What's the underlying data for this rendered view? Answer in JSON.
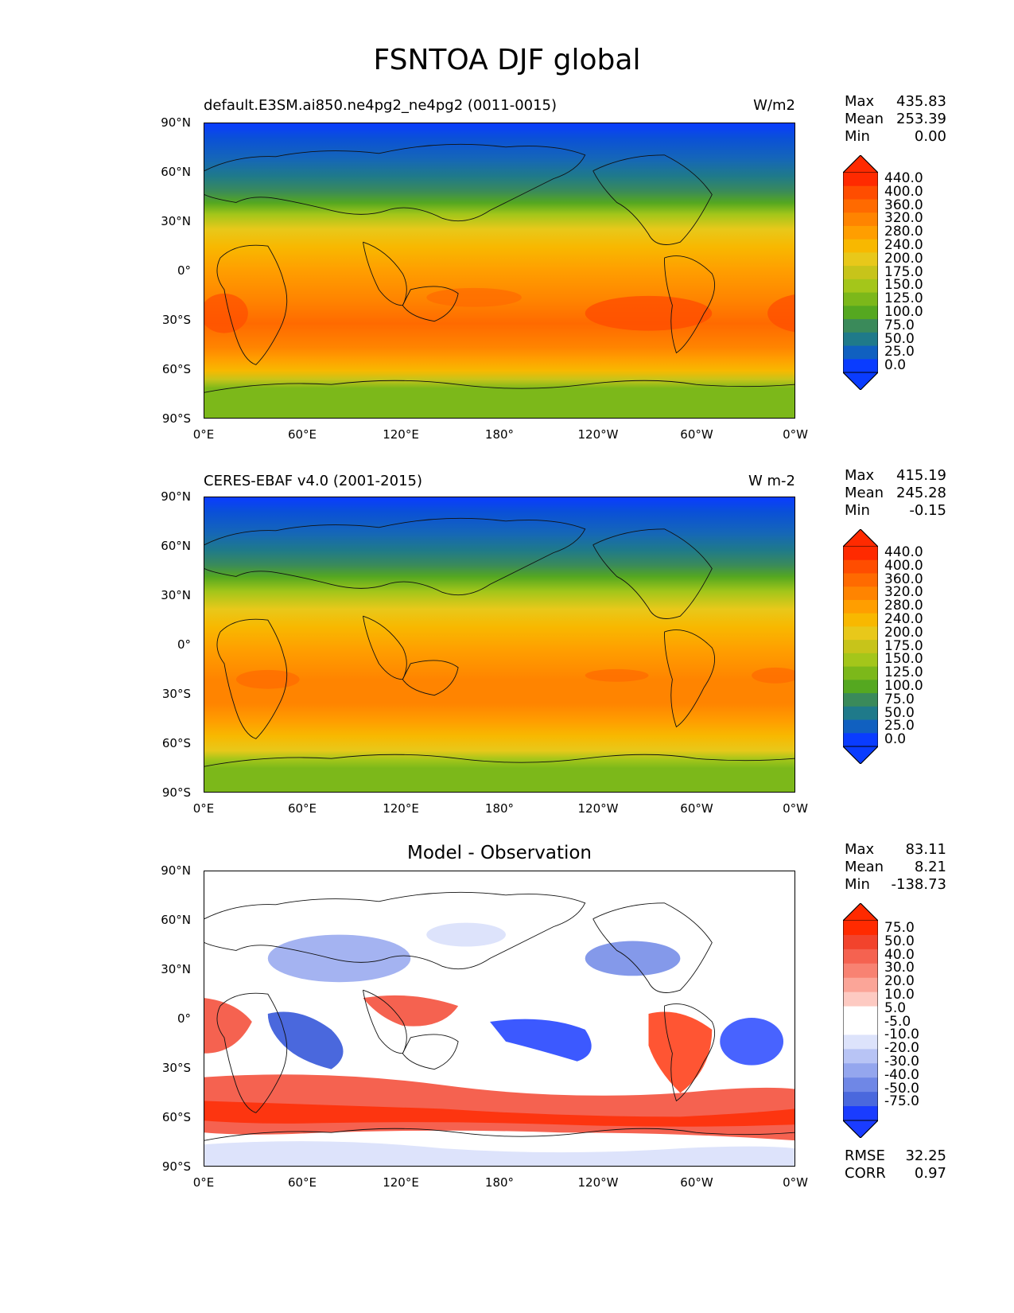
{
  "figure": {
    "title": "FSNTOA DJF global"
  },
  "axes": {
    "y_ticks": [
      "90°N",
      "60°N",
      "30°N",
      "0°",
      "30°S",
      "60°S",
      "90°S"
    ],
    "x_ticks": [
      "0°E",
      "60°E",
      "120°E",
      "180°",
      "120°W",
      "60°W",
      "0°W"
    ]
  },
  "panels": [
    {
      "title": "default.E3SM.ai850.ne4pg2_ne4pg2 (0011-0015)",
      "units": "W/m2",
      "stats": {
        "max_label": "Max",
        "max": "435.83",
        "mean_label": "Mean",
        "mean": "253.39",
        "min_label": "Min",
        "min": "0.00"
      },
      "colorbar_labels": [
        "440.0",
        "400.0",
        "360.0",
        "320.0",
        "280.0",
        "240.0",
        "200.0",
        "175.0",
        "150.0",
        "125.0",
        "100.0",
        "75.0",
        "50.0",
        "25.0",
        "0.0"
      ]
    },
    {
      "title": "CERES-EBAF v4.0 (2001-2015)",
      "units": "W m-2",
      "stats": {
        "max_label": "Max",
        "max": "415.19",
        "mean_label": "Mean",
        "mean": "245.28",
        "min_label": "Min",
        "min": "-0.15"
      },
      "colorbar_labels": [
        "440.0",
        "400.0",
        "360.0",
        "320.0",
        "280.0",
        "240.0",
        "200.0",
        "175.0",
        "150.0",
        "125.0",
        "100.0",
        "75.0",
        "50.0",
        "25.0",
        "0.0"
      ]
    },
    {
      "title": "Model - Observation",
      "units": "",
      "stats": {
        "max_label": "Max",
        "max": "83.11",
        "mean_label": "Mean",
        "mean": "8.21",
        "min_label": "Min",
        "min": "-138.73"
      },
      "colorbar_labels": [
        "75.0",
        "50.0",
        "40.0",
        "30.0",
        "20.0",
        "10.0",
        "5.0",
        "-5.0",
        "-10.0",
        "-20.0",
        "-30.0",
        "-40.0",
        "-50.0",
        "-75.0"
      ],
      "extra": {
        "rmse_label": "RMSE",
        "rmse": "32.25",
        "corr_label": "CORR",
        "corr": "0.97"
      }
    }
  ],
  "colors": {
    "abs_scale": [
      "#ff2a00",
      "#ff4d00",
      "#ff6a00",
      "#ff8400",
      "#ff9e00",
      "#f8b800",
      "#e8c81a",
      "#c7c41a",
      "#a4c61a",
      "#7cb81a",
      "#55a820",
      "#3a8a5a",
      "#1f7a8a",
      "#1060c0",
      "#0a3cff"
    ],
    "diff_scale": [
      "#ff2a00",
      "#f2432c",
      "#f56250",
      "#f88272",
      "#fba598",
      "#fdcac2",
      "#ffffff",
      "#ffffff",
      "#dde3fb",
      "#b8c4f5",
      "#94a6ee",
      "#6f87e6",
      "#4a68dd",
      "#1a3cff"
    ]
  }
}
